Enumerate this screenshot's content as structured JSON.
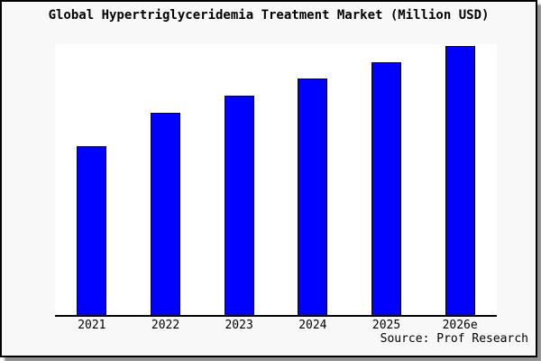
{
  "title": "Global Hypertriglyceridemia Treatment Market (Million USD)",
  "source_credit": "Source: Prof Research",
  "colors": {
    "page_background": "#f8f8f8",
    "plot_background": "#ffffff",
    "bar_fill": "#0000ff",
    "bar_outline": "#000000",
    "frame_border": "#000000",
    "drop_shadow": "#8f8f8f",
    "text": "#000000"
  },
  "chart_data": {
    "type": "bar",
    "title": "Global Hypertriglyceridemia Treatment Market (Million USD)",
    "categories": [
      "2021",
      "2022",
      "2023",
      "2024",
      "2025",
      "2026e"
    ],
    "values": [
      62.3,
      74.8,
      81.0,
      87.3,
      93.3,
      99.3
    ],
    "xlabel": "",
    "ylabel": "",
    "ylim": [
      0,
      100
    ],
    "grid": false,
    "legend": false,
    "y_axis_visible": false,
    "value_units": "relative bar height, percent of plot height (no y-axis scale shown)",
    "annotation": "Source: Prof Research"
  }
}
